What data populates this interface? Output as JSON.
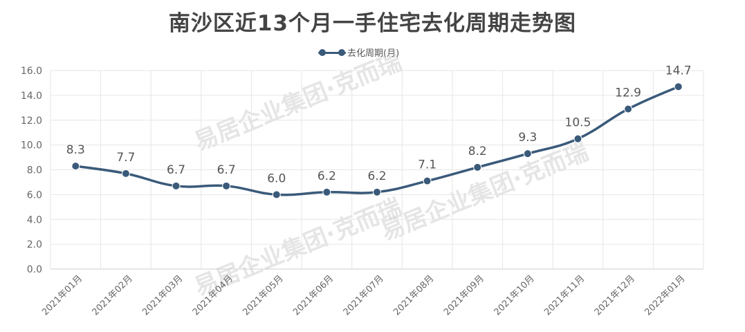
{
  "chart_data": {
    "type": "line",
    "title": "南沙区近13个月一手住宅去化周期走势图",
    "categories": [
      "2021年01月",
      "2021年02月",
      "2021年03月",
      "2021年04月",
      "2021年05月",
      "2021年06月",
      "2021年07月",
      "2021年08月",
      "2021年09月",
      "2021年10月",
      "2021年11月",
      "2021年12月",
      "2022年01月"
    ],
    "series": [
      {
        "name": "去化周期(月)",
        "values": [
          8.3,
          7.7,
          6.7,
          6.7,
          6.0,
          6.2,
          6.2,
          7.1,
          8.2,
          9.3,
          10.5,
          12.9,
          14.7
        ]
      }
    ],
    "ylim": [
      0,
      16
    ],
    "yticks": [
      "0.0",
      "2.0",
      "4.0",
      "6.0",
      "8.0",
      "10.0",
      "12.0",
      "14.0",
      "16.0"
    ],
    "grid": true,
    "legend": "top-center",
    "line_color": "#3a5a7a",
    "watermark": "易居企业集团·克而瑞"
  }
}
